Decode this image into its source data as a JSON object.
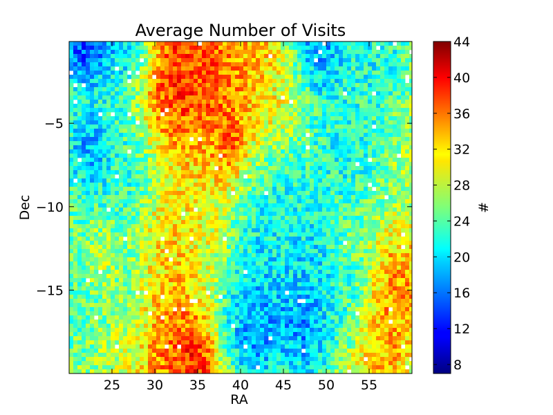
{
  "chart_data": {
    "type": "heatmap",
    "title": "Average Number of Visits",
    "xlabel": "RA",
    "ylabel": "Dec",
    "xlim": [
      20,
      60
    ],
    "ylim": [
      -20,
      -0.1
    ],
    "xticks": [
      25,
      30,
      35,
      40,
      45,
      50,
      55
    ],
    "yticks": [
      -5,
      -10,
      -15
    ],
    "xtick_labels": [
      "25",
      "30",
      "35",
      "40",
      "45",
      "50",
      "55"
    ],
    "ytick_labels": [
      "−5",
      "−10",
      "−15"
    ],
    "colorbar": {
      "label": "#",
      "range": [
        7,
        44
      ],
      "ticks": [
        8,
        12,
        16,
        20,
        24,
        28,
        32,
        36,
        40,
        44
      ],
      "tick_labels": [
        "8",
        "12",
        "16",
        "20",
        "24",
        "28",
        "32",
        "36",
        "40",
        "44"
      ],
      "colormap": "jet"
    },
    "background_level": 27,
    "regions": [
      {
        "ra": 32,
        "dec": -2,
        "value": 41,
        "radius": 2.5
      },
      {
        "ra": 35.5,
        "dec": -3.5,
        "value": 38,
        "radius": 2.5
      },
      {
        "ra": 38.5,
        "dec": -6,
        "value": 40,
        "radius": 1.2
      },
      {
        "ra": 36,
        "dec": -1,
        "value": 37,
        "radius": 2.0
      },
      {
        "ra": 41,
        "dec": -1.5,
        "value": 36,
        "radius": 2.0
      },
      {
        "ra": 32,
        "dec": -18.5,
        "value": 38,
        "radius": 2.5
      },
      {
        "ra": 34.5,
        "dec": -19.5,
        "value": 41,
        "radius": 1.2
      },
      {
        "ra": 58.5,
        "dec": -15,
        "value": 36,
        "radius": 1.8
      },
      {
        "ra": 56,
        "dec": -18.5,
        "value": 35,
        "radius": 2.0
      },
      {
        "ra": 31,
        "dec": -12.5,
        "value": 33,
        "radius": 2.0
      },
      {
        "ra": 24,
        "dec": -13,
        "value": 33,
        "radius": 1.5
      },
      {
        "ra": 22,
        "dec": -0.3,
        "value": 10,
        "radius": 1.5
      },
      {
        "ra": 27,
        "dec": -0.3,
        "value": 16,
        "radius": 2.0
      },
      {
        "ra": 49,
        "dec": -0.3,
        "value": 14,
        "radius": 2.0
      },
      {
        "ra": 56,
        "dec": -1,
        "value": 20,
        "radius": 2.0
      },
      {
        "ra": 22.5,
        "dec": -6.5,
        "value": 14,
        "radius": 1.4
      },
      {
        "ra": 42,
        "dec": -13,
        "value": 19,
        "radius": 2.5
      },
      {
        "ra": 42,
        "dec": -17,
        "value": 14,
        "radius": 2.0
      },
      {
        "ra": 47.5,
        "dec": -17,
        "value": 14,
        "radius": 1.8
      },
      {
        "ra": 45,
        "dec": -11,
        "value": 20,
        "radius": 2.5
      },
      {
        "ra": 52,
        "dec": -6.5,
        "value": 20,
        "radius": 2.5
      },
      {
        "ra": 48,
        "dec": -9,
        "value": 22,
        "radius": 2.5
      },
      {
        "ra": 48,
        "dec": -13,
        "value": 18,
        "radius": 1.6
      },
      {
        "ra": 25,
        "dec": -8,
        "value": 21,
        "radius": 3.0
      },
      {
        "ra": 24,
        "dec": -15,
        "value": 22,
        "radius": 3.0
      },
      {
        "ra": 52,
        "dec": -16,
        "value": 21,
        "radius": 2.0
      },
      {
        "ra": 44,
        "dec": -3,
        "value": 30,
        "radius": 2.5
      },
      {
        "ra": 36,
        "dec": -9,
        "value": 31,
        "radius": 3.0
      },
      {
        "ra": 26,
        "dec": -18.5,
        "value": 30,
        "radius": 2.0
      }
    ]
  }
}
